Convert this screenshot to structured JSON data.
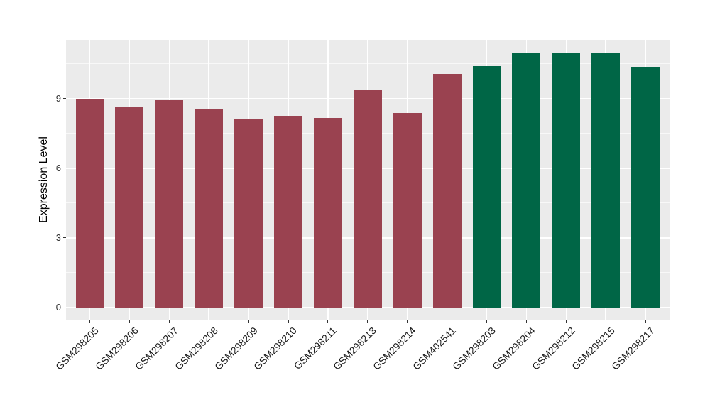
{
  "chart_data": {
    "type": "bar",
    "title": "",
    "xlabel": "",
    "ylabel": "Expression Level",
    "categories": [
      "GSM298205",
      "GSM298206",
      "GSM298207",
      "GSM298208",
      "GSM298209",
      "GSM298210",
      "GSM298211",
      "GSM298213",
      "GSM298214",
      "GSM402541",
      "GSM298203",
      "GSM298204",
      "GSM298212",
      "GSM298215",
      "GSM298217"
    ],
    "values": [
      9.0,
      8.64,
      8.92,
      8.57,
      8.1,
      8.27,
      8.18,
      9.4,
      8.39,
      10.06,
      10.41,
      10.94,
      10.98,
      10.94,
      10.37
    ],
    "bar_colors": [
      "#9A4250",
      "#9A4250",
      "#9A4250",
      "#9A4250",
      "#9A4250",
      "#9A4250",
      "#9A4250",
      "#9A4250",
      "#9A4250",
      "#9A4250",
      "#006646",
      "#006646",
      "#006646",
      "#006646",
      "#006646"
    ],
    "group_colors": {
      "left_group": "#9A4250",
      "right_group": "#006646"
    },
    "ytick_labels": [
      "0",
      "3",
      "6",
      "9"
    ],
    "ytick_values": [
      0,
      3,
      6,
      9
    ],
    "minor_ytick_values": [
      1.5,
      4.5,
      7.5,
      10.5
    ],
    "ylim": [
      0,
      11.5
    ],
    "grid": "on",
    "legend": "none",
    "panel_background": "#EBEBEB",
    "grid_color": "#FFFFFF",
    "axis_text_color": "#303030"
  }
}
